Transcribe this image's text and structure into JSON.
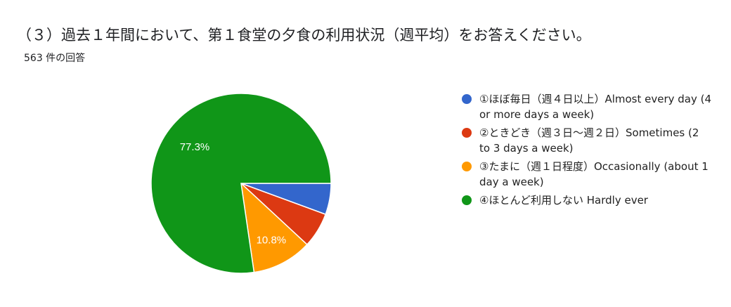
{
  "title": "（３）過去１年間において、第１食堂の夕食の利用状況（週平均）をお答えください。",
  "response_count": "563 件の回答",
  "chart_data": {
    "type": "pie",
    "title": "（３）過去１年間において、第１食堂の夕食の利用状況（週平均）をお答えください。",
    "legend_position": "right",
    "slices": [
      {
        "label": "①ほぼ毎日（週４日以上）Almost every day (4 or more days a week)",
        "value": 5.6,
        "color": "#3366cc",
        "data_label": ""
      },
      {
        "label": "②ときどき（週３日〜週２日）Sometimes (2 to 3 days a week)",
        "value": 6.3,
        "color": "#dc3912",
        "data_label": ""
      },
      {
        "label": "③たまに（週１日程度）Occasionally (about 1 day a week)",
        "value": 10.8,
        "color": "#ff9900",
        "data_label": "10.8%"
      },
      {
        "label": "④ほとんど利用しない Hardly ever",
        "value": 77.3,
        "color": "#109618",
        "data_label": "77.3%"
      }
    ]
  }
}
